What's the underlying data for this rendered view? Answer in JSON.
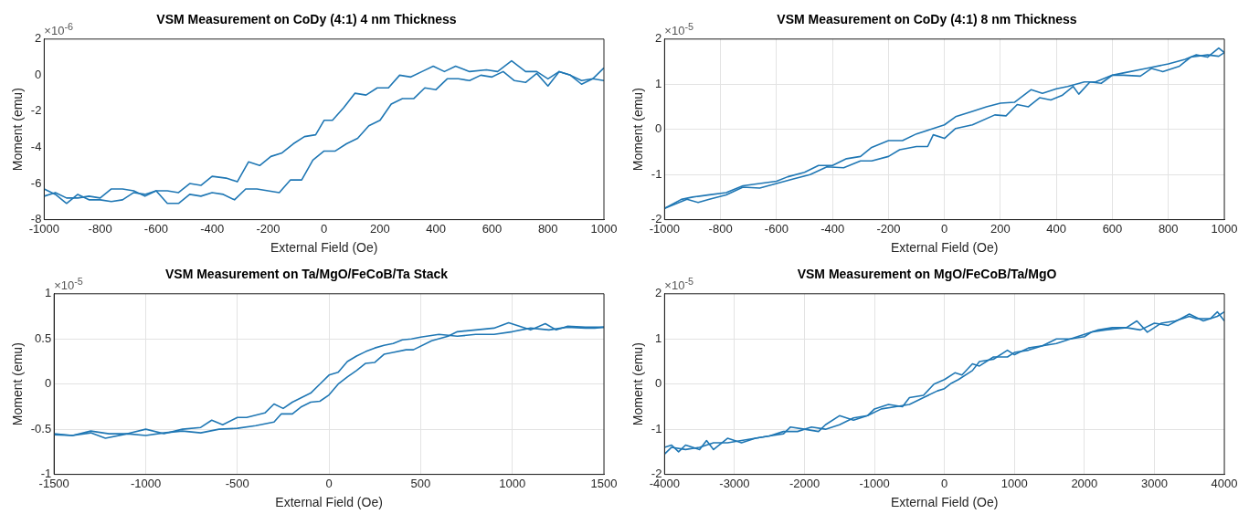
{
  "chart_data": [
    {
      "type": "line",
      "title": "VSM Measurement on CoDy (4:1) 4 nm Thickness",
      "xlabel": "External Field (Oe)",
      "ylabel": "Moment (emu)",
      "annotations": [
        "×10$^{-6}$"
      ],
      "xlim": [
        -1000,
        1000
      ],
      "xticks": [
        -1000,
        -800,
        -600,
        -400,
        -200,
        0,
        200,
        400,
        600,
        800,
        1000
      ],
      "ylim": [
        -8,
        2
      ],
      "yticks": [
        -8,
        -6,
        -4,
        -2,
        0,
        2
      ],
      "grid": false,
      "marker": "none",
      "line_style": "solid",
      "series": [
        {
          "color": "#1f77b4",
          "x": [
            1000,
            960,
            920,
            880,
            840,
            800,
            760,
            720,
            670,
            620,
            580,
            520,
            470,
            430,
            390,
            350,
            310,
            270,
            230,
            190,
            150,
            110,
            70,
            30,
            0,
            -30,
            -70,
            -110,
            -150,
            -190,
            -230,
            -270,
            -310,
            -350,
            -400,
            -440,
            -480,
            -520,
            -560,
            -600,
            -640,
            -680,
            -720,
            -760,
            -800,
            -840,
            -880,
            -920,
            -960,
            -1000
          ],
          "values": [
            -0.3,
            -0.2,
            -0.5,
            0,
            0.2,
            -0.2,
            0.2,
            0.2,
            0.8,
            0.2,
            0.3,
            0.2,
            0.5,
            0.2,
            0.5,
            0.2,
            -0.1,
            0,
            -0.7,
            -0.7,
            -1.1,
            -1,
            -1.8,
            -2.5,
            -2.5,
            -3.3,
            -3.4,
            -3.8,
            -4.3,
            -4.5,
            -5,
            -4.8,
            -5.9,
            -5.7,
            -5.6,
            -6.1,
            -6,
            -6.5,
            -6.4,
            -6.4,
            -6.7,
            -6.4,
            -6.3,
            -6.3,
            -6.8,
            -6.7,
            -6.8,
            -6.8,
            -6.5,
            -6.7
          ]
        },
        {
          "color": "#1f77b4",
          "x": [
            -1000,
            -960,
            -920,
            -880,
            -840,
            -800,
            -760,
            -720,
            -680,
            -640,
            -600,
            -560,
            -520,
            -480,
            -440,
            -400,
            -360,
            -320,
            -280,
            -240,
            -200,
            -160,
            -120,
            -80,
            -40,
            0,
            40,
            80,
            120,
            160,
            200,
            240,
            280,
            320,
            360,
            400,
            440,
            480,
            520,
            560,
            600,
            640,
            680,
            720,
            760,
            800,
            840,
            880,
            920,
            960,
            1000
          ],
          "values": [
            -6.3,
            -6.6,
            -7.1,
            -6.6,
            -6.9,
            -6.9,
            -7,
            -6.9,
            -6.5,
            -6.6,
            -6.4,
            -7.1,
            -7.1,
            -6.6,
            -6.7,
            -6.5,
            -6.6,
            -6.9,
            -6.3,
            -6.3,
            -6.4,
            -6.5,
            -5.8,
            -5.8,
            -4.7,
            -4.2,
            -4.2,
            -3.8,
            -3.5,
            -2.8,
            -2.5,
            -1.6,
            -1.3,
            -1.3,
            -0.7,
            -0.8,
            -0.2,
            -0.2,
            -0.3,
            0,
            -0.1,
            0.2,
            -0.3,
            -0.4,
            0.1,
            -0.6,
            0.2,
            0,
            -0.3,
            -0.2,
            0.4
          ]
        }
      ]
    },
    {
      "type": "line",
      "title": "VSM Measurement on CoDy (4:1) 8 nm Thickness",
      "xlabel": "External Field (Oe)",
      "ylabel": "Moment (emu)",
      "annotations": [
        "×10$^{-5}$"
      ],
      "xlim": [
        -1000,
        1000
      ],
      "xticks": [
        -1000,
        -800,
        -600,
        -400,
        -200,
        0,
        200,
        400,
        600,
        800,
        1000
      ],
      "ylim": [
        -2,
        2
      ],
      "yticks": [
        -2,
        -1,
        0,
        1,
        2
      ],
      "grid": true,
      "marker": "none",
      "line_style": "solid",
      "series": [
        {
          "color": "#1f77b4",
          "x": [
            1000,
            980,
            940,
            900,
            860,
            800,
            720,
            640,
            600,
            540,
            500,
            440,
            400,
            350,
            310,
            250,
            200,
            150,
            100,
            40,
            0,
            -50,
            -100,
            -150,
            -200,
            -260,
            -300,
            -350,
            -400,
            -450,
            -500,
            -560,
            -600,
            -660,
            -720,
            -780,
            -840,
            -900,
            -940,
            -1000
          ],
          "values": [
            1.7,
            1.8,
            1.6,
            1.65,
            1.55,
            1.45,
            1.35,
            1.25,
            1.2,
            1.05,
            1.05,
            0.95,
            0.9,
            0.8,
            0.88,
            0.6,
            0.58,
            0.5,
            0.4,
            0.28,
            0.1,
            0,
            -0.1,
            -0.25,
            -0.25,
            -0.4,
            -0.6,
            -0.65,
            -0.8,
            -0.8,
            -0.95,
            -1.05,
            -1.15,
            -1.2,
            -1.25,
            -1.4,
            -1.45,
            -1.5,
            -1.55,
            -1.75
          ]
        },
        {
          "color": "#1f77b4",
          "x": [
            -1000,
            -960,
            -920,
            -880,
            -840,
            -780,
            -720,
            -660,
            -600,
            -540,
            -480,
            -420,
            -360,
            -300,
            -260,
            -200,
            -160,
            -100,
            -60,
            -40,
            0,
            40,
            100,
            180,
            220,
            260,
            300,
            340,
            380,
            420,
            460,
            480,
            520,
            560,
            600,
            640,
            700,
            740,
            780,
            840,
            880,
            940,
            980,
            1000
          ],
          "values": [
            -1.75,
            -1.65,
            -1.55,
            -1.62,
            -1.55,
            -1.45,
            -1.28,
            -1.3,
            -1.2,
            -1.1,
            -1,
            -0.83,
            -0.85,
            -0.7,
            -0.7,
            -0.6,
            -0.45,
            -0.38,
            -0.38,
            -0.12,
            -0.2,
            0.02,
            0.1,
            0.32,
            0.3,
            0.55,
            0.5,
            0.7,
            0.65,
            0.75,
            0.95,
            0.78,
            1.05,
            1.02,
            1.2,
            1.2,
            1.18,
            1.35,
            1.28,
            1.4,
            1.6,
            1.65,
            1.62,
            1.7
          ]
        }
      ]
    },
    {
      "type": "line",
      "title": "VSM Measurement on Ta/MgO/FeCoB/Ta Stack",
      "xlabel": "External Field (Oe)",
      "ylabel": "Moment (emu)",
      "annotations": [
        "×10$^{-5}$"
      ],
      "xlim": [
        -1500,
        1500
      ],
      "xticks": [
        -1500,
        -1000,
        -500,
        0,
        500,
        1000,
        1500
      ],
      "ylim": [
        -1,
        1
      ],
      "yticks": [
        -1,
        -0.5,
        0,
        0.5,
        1
      ],
      "grid": true,
      "marker": "none",
      "line_style": "solid",
      "series": [
        {
          "color": "#1f77b4",
          "x": [
            1500,
            1450,
            1400,
            1300,
            1200,
            1100,
            1000,
            900,
            800,
            700,
            600,
            500,
            450,
            400,
            350,
            300,
            250,
            200,
            150,
            100,
            50,
            0,
            -50,
            -100,
            -150,
            -200,
            -250,
            -300,
            -350,
            -450,
            -500,
            -580,
            -640,
            -700,
            -800,
            -900,
            -1000,
            -1100,
            -1200,
            -1300,
            -1400,
            -1500
          ],
          "values": [
            0.63,
            0.62,
            0.62,
            0.63,
            0.6,
            0.62,
            0.58,
            0.55,
            0.55,
            0.53,
            0.55,
            0.52,
            0.5,
            0.49,
            0.45,
            0.43,
            0.4,
            0.36,
            0.31,
            0.25,
            0.13,
            0.1,
            0,
            -0.1,
            -0.15,
            -0.2,
            -0.27,
            -0.22,
            -0.32,
            -0.37,
            -0.37,
            -0.45,
            -0.4,
            -0.48,
            -0.5,
            -0.55,
            -0.5,
            -0.55,
            -0.55,
            -0.52,
            -0.57,
            -0.55
          ]
        },
        {
          "color": "#1f77b4",
          "x": [
            -1500,
            -1400,
            -1300,
            -1220,
            -1100,
            -1000,
            -900,
            -800,
            -700,
            -600,
            -500,
            -400,
            -300,
            -260,
            -200,
            -150,
            -100,
            -50,
            0,
            50,
            100,
            150,
            200,
            250,
            300,
            350,
            420,
            460,
            560,
            650,
            700,
            800,
            900,
            980,
            1100,
            1180,
            1240,
            1300,
            1400,
            1500
          ],
          "values": [
            -0.56,
            -0.57,
            -0.54,
            -0.6,
            -0.55,
            -0.57,
            -0.54,
            -0.52,
            -0.54,
            -0.5,
            -0.49,
            -0.46,
            -0.42,
            -0.33,
            -0.33,
            -0.25,
            -0.2,
            -0.19,
            -0.12,
            0,
            0.08,
            0.15,
            0.23,
            0.24,
            0.33,
            0.35,
            0.38,
            0.38,
            0.48,
            0.53,
            0.58,
            0.6,
            0.62,
            0.68,
            0.6,
            0.67,
            0.6,
            0.64,
            0.63,
            0.63
          ]
        }
      ]
    },
    {
      "type": "line",
      "title": "VSM Measurement on MgO/FeCoB/Ta/MgO",
      "xlabel": "External Field (Oe)",
      "ylabel": "Moment (emu)",
      "annotations": [
        "×10$^{-5}$"
      ],
      "xlim": [
        -4000,
        4000
      ],
      "xticks": [
        -4000,
        -3000,
        -2000,
        -1000,
        0,
        1000,
        2000,
        3000,
        4000
      ],
      "ylim": [
        -2,
        2
      ],
      "yticks": [
        -2,
        -1,
        0,
        1,
        2
      ],
      "grid": true,
      "marker": "none",
      "line_style": "solid",
      "series": [
        {
          "color": "#1f77b4",
          "x": [
            4000,
            3900,
            3800,
            3600,
            3500,
            3300,
            3100,
            2900,
            2750,
            2600,
            2400,
            2200,
            2000,
            1800,
            1600,
            1400,
            1200,
            1000,
            900,
            700,
            500,
            400,
            200,
            100,
            0,
            -100,
            -300,
            -500,
            -700,
            -900,
            -1100,
            -1300,
            -1500,
            -1700,
            -1900,
            -2100,
            -2300,
            -2500,
            -2700,
            -2900,
            -3100,
            -3300,
            -3500,
            -3700,
            -3900,
            -4000
          ],
          "values": [
            1.4,
            1.6,
            1.45,
            1.45,
            1.5,
            1.4,
            1.35,
            1.15,
            1.4,
            1.25,
            1.25,
            1.2,
            1.1,
            1,
            1,
            0.85,
            0.8,
            0.65,
            0.75,
            0.55,
            0.5,
            0.3,
            0.1,
            0.02,
            -0.1,
            -0.15,
            -0.3,
            -0.45,
            -0.5,
            -0.55,
            -0.7,
            -0.75,
            -0.9,
            -1,
            -0.95,
            -1.05,
            -1.05,
            -1.15,
            -1.2,
            -1.25,
            -1.3,
            -1.3,
            -1.4,
            -1.45,
            -1.4,
            -1.55
          ]
        },
        {
          "color": "#1f77b4",
          "x": [
            -4000,
            -3900,
            -3800,
            -3700,
            -3500,
            -3400,
            -3300,
            -3100,
            -2900,
            -2700,
            -2500,
            -2300,
            -2200,
            -2000,
            -1800,
            -1700,
            -1500,
            -1300,
            -1100,
            -1000,
            -800,
            -600,
            -500,
            -300,
            -150,
            0,
            150,
            250,
            400,
            500,
            700,
            900,
            1000,
            1200,
            1400,
            1600,
            1800,
            2000,
            2100,
            2300,
            2600,
            2800,
            3000,
            3200,
            3500,
            3700,
            3900,
            4000
          ],
          "values": [
            -1.4,
            -1.35,
            -1.5,
            -1.35,
            -1.45,
            -1.25,
            -1.45,
            -1.2,
            -1.3,
            -1.2,
            -1.15,
            -1.1,
            -0.95,
            -1,
            -1.05,
            -0.9,
            -0.7,
            -0.8,
            -0.7,
            -0.55,
            -0.45,
            -0.5,
            -0.3,
            -0.25,
            0,
            0.1,
            0.25,
            0.2,
            0.45,
            0.4,
            0.6,
            0.6,
            0.7,
            0.75,
            0.85,
            0.9,
            1,
            1.05,
            1.15,
            1.2,
            1.25,
            1.2,
            1.35,
            1.3,
            1.55,
            1.4,
            1.5,
            1.6
          ]
        }
      ]
    }
  ]
}
